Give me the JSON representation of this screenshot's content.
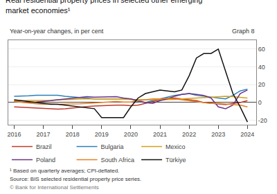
{
  "chart_data": {
    "type": "line",
    "title": [
      "Real residential property prices in selected other emerging",
      "market economies¹"
    ],
    "subtitle": "Year-on-year changes, in per cent",
    "annotations": [
      "Graph 8",
      "¹ Based on quarterly averages; CPI-deflated.",
      "Source: BIS selected residential property price series.",
      "© Bank for International Settlements"
    ],
    "x": [
      2016.0,
      2016.25,
      2016.5,
      2016.75,
      2017.0,
      2017.25,
      2017.5,
      2017.75,
      2018.0,
      2018.25,
      2018.5,
      2018.75,
      2019.0,
      2019.25,
      2019.5,
      2019.75,
      2020.0,
      2020.25,
      2020.5,
      2020.75,
      2021.0,
      2021.25,
      2021.5,
      2021.75,
      2022.0,
      2022.25,
      2022.5,
      2022.75,
      2023.0,
      2023.25,
      2023.5,
      2023.75,
      2024.0
    ],
    "series": [
      {
        "name": "Brazil",
        "color": "#c0392b",
        "values": [
          -5,
          -5.5,
          -6,
          -6.5,
          -7,
          -7,
          -7.5,
          -7,
          -6,
          -5,
          -4.5,
          -4,
          -3.5,
          -3,
          -3,
          -3,
          -3.5,
          -3,
          -1,
          1,
          3,
          5,
          5,
          4,
          3,
          2,
          0,
          -1,
          -2,
          -2.5,
          -1,
          0,
          2
        ]
      },
      {
        "name": "Bulgaria",
        "color": "#2980b9",
        "values": [
          7,
          7,
          7.5,
          8,
          8,
          8.5,
          8,
          7,
          6,
          5.5,
          5,
          4,
          4,
          4,
          4,
          4.5,
          4,
          1,
          0,
          2,
          4,
          6,
          8,
          9,
          10,
          8,
          7,
          6,
          5,
          4,
          8,
          13,
          15
        ]
      },
      {
        "name": "Mexico",
        "color": "#d4a017",
        "values": [
          2,
          2,
          2.5,
          2,
          2,
          2.5,
          3,
          3,
          3.5,
          4,
          4,
          4,
          4,
          4.5,
          4.5,
          4,
          3.5,
          3,
          3,
          3,
          3,
          3,
          3.5,
          4,
          4.5,
          5,
          5.5,
          6,
          7,
          7,
          6.5,
          6,
          5
        ]
      },
      {
        "name": "Poland",
        "color": "#6c3483",
        "values": [
          1,
          0.5,
          0,
          0.5,
          1,
          2,
          3,
          4,
          5,
          6,
          6.5,
          6,
          6,
          6,
          6.5,
          5,
          4,
          2,
          0,
          -1,
          2,
          4,
          7,
          9,
          10,
          9,
          8,
          5,
          -5,
          -7,
          -3,
          10,
          14
        ]
      },
      {
        "name": "South Africa",
        "color": "#e67e22",
        "values": [
          1,
          0,
          -1,
          -1.5,
          -2,
          -1.5,
          -2,
          -2,
          -2,
          -1.5,
          -1,
          -0.5,
          0,
          0.5,
          1,
          0.5,
          0.5,
          2,
          3,
          4,
          4,
          4.5,
          4,
          3,
          2,
          1,
          0,
          -1,
          -1,
          -1.5,
          -2,
          -3,
          -5
        ]
      },
      {
        "name": "Türkiye",
        "color": "#111111",
        "values": [
          3,
          2,
          1,
          0,
          -1,
          -2,
          -2,
          -3,
          -4,
          -5,
          -6,
          -7,
          -17,
          -17,
          -17,
          -17,
          -5,
          5,
          10,
          12,
          14,
          13,
          12,
          14,
          30,
          50,
          55,
          55,
          60,
          35,
          10,
          -5,
          -22
        ]
      }
    ],
    "xlim": [
      2015.8,
      2024.3
    ],
    "xticks": [
      2016,
      2017,
      2018,
      2019,
      2020,
      2021,
      2022,
      2023,
      2024
    ],
    "ylim": [
      -25,
      70
    ],
    "yticks": [
      -20,
      0,
      20,
      40,
      60
    ],
    "grid": "y",
    "legend": "bottom"
  }
}
